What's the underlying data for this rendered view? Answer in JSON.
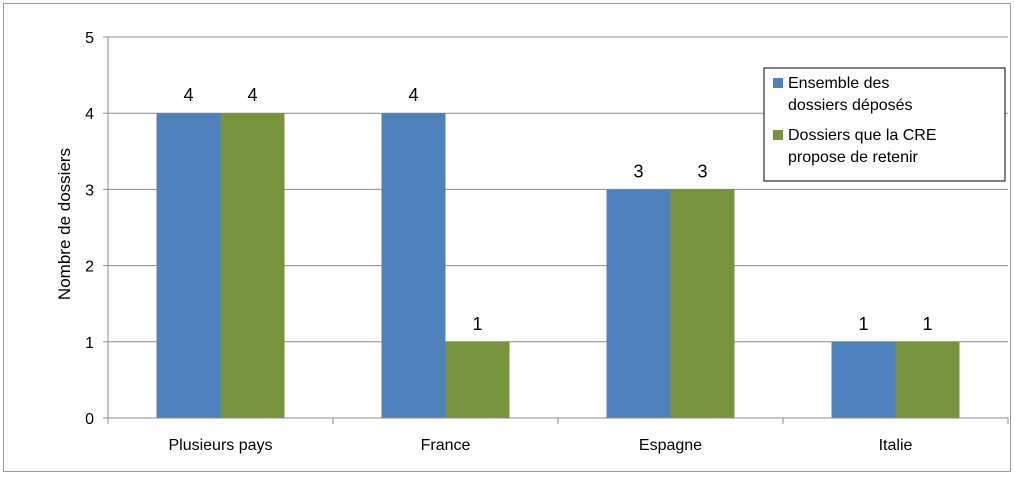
{
  "chart_data": {
    "type": "bar",
    "title": "",
    "xlabel": "",
    "ylabel": "Nombre de dossiers",
    "ylim": [
      0,
      5
    ],
    "yticks": [
      0,
      1,
      2,
      3,
      4,
      5
    ],
    "grid": true,
    "legend_position": "top-right",
    "categories": [
      "Plusieurs pays",
      "France",
      "Espagne",
      "Italie"
    ],
    "series": [
      {
        "name": "Ensemble des dossiers déposés",
        "name_lines": [
          "Ensemble des",
          "dossiers déposés"
        ],
        "color": "#4f81bd",
        "values": [
          4,
          4,
          3,
          1
        ]
      },
      {
        "name": "Dossiers que la CRE propose de retenir",
        "name_lines": [
          "Dossiers que la CRE",
          "propose de retenir"
        ],
        "color": "#77933c",
        "values": [
          4,
          1,
          3,
          1
        ]
      }
    ]
  }
}
